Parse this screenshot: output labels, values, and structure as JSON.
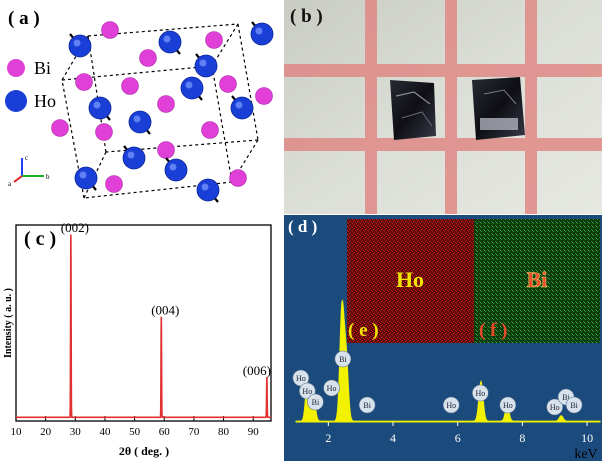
{
  "figure": {
    "panel_a": {
      "label": "( a )",
      "legend": [
        {
          "name": "Bi",
          "color": "#e040d8"
        },
        {
          "name": "Ho",
          "color": "#1a3fd6"
        }
      ],
      "axes_labels": {
        "c": "c",
        "b": "b",
        "a": "a"
      }
    },
    "panel_b": {
      "label": "( b )"
    },
    "panel_c": {
      "label": "( c )",
      "chart_data": {
        "type": "line",
        "xlabel": "2θ ( deg. )",
        "ylabel": "Intensity ( a. u. )",
        "xlim": [
          10,
          96
        ],
        "x_ticks": [
          10,
          20,
          30,
          40,
          50,
          60,
          70,
          80,
          90
        ],
        "ylim": [
          0,
          1.05
        ],
        "baseline": 0.02,
        "peaks": [
          {
            "x": 28.5,
            "y": 1.0,
            "label": "(002)"
          },
          {
            "x": 59.0,
            "y": 0.55,
            "label": "(004)"
          },
          {
            "x": 94.6,
            "y": 0.22,
            "label": "(006)"
          }
        ],
        "color": "#e03030"
      }
    },
    "panel_d": {
      "label": "( d )",
      "map_ho": {
        "label": "Ho",
        "sub_label": "( e )",
        "color": "#c61414"
      },
      "map_bi": {
        "label": "Bi",
        "sub_label": "( f )",
        "color": "#1f8a1f"
      },
      "chart_data": {
        "type": "area",
        "xlabel": "keV",
        "xlim": [
          1,
          10.4
        ],
        "x_ticks": [
          2,
          4,
          6,
          8,
          10
        ],
        "color": "#f2f200",
        "peaks": [
          {
            "x": 1.35,
            "h": 0.22,
            "w": 0.08
          },
          {
            "x": 1.55,
            "h": 0.12,
            "w": 0.08
          },
          {
            "x": 2.42,
            "h": 0.62,
            "w": 0.09
          },
          {
            "x": 2.55,
            "h": 0.35,
            "w": 0.09
          },
          {
            "x": 6.72,
            "h": 0.22,
            "w": 0.09
          },
          {
            "x": 7.53,
            "h": 0.09,
            "w": 0.08
          },
          {
            "x": 9.2,
            "h": 0.03,
            "w": 0.08
          }
        ],
        "annotations": [
          {
            "text": "Ho",
            "x": 1.15
          },
          {
            "text": "Ho",
            "x": 1.35
          },
          {
            "text": "Bi",
            "x": 1.6
          },
          {
            "text": "Bi",
            "x": 2.45
          },
          {
            "text": "Ho",
            "x": 2.1
          },
          {
            "text": "Bi",
            "x": 3.2
          },
          {
            "text": "Ho",
            "x": 5.8
          },
          {
            "text": "Ho",
            "x": 6.7
          },
          {
            "text": "Ho",
            "x": 7.55
          },
          {
            "text": "Ho",
            "x": 9.0
          },
          {
            "text": "Bi",
            "x": 9.35
          },
          {
            "text": "Bi",
            "x": 9.6
          }
        ]
      }
    }
  }
}
